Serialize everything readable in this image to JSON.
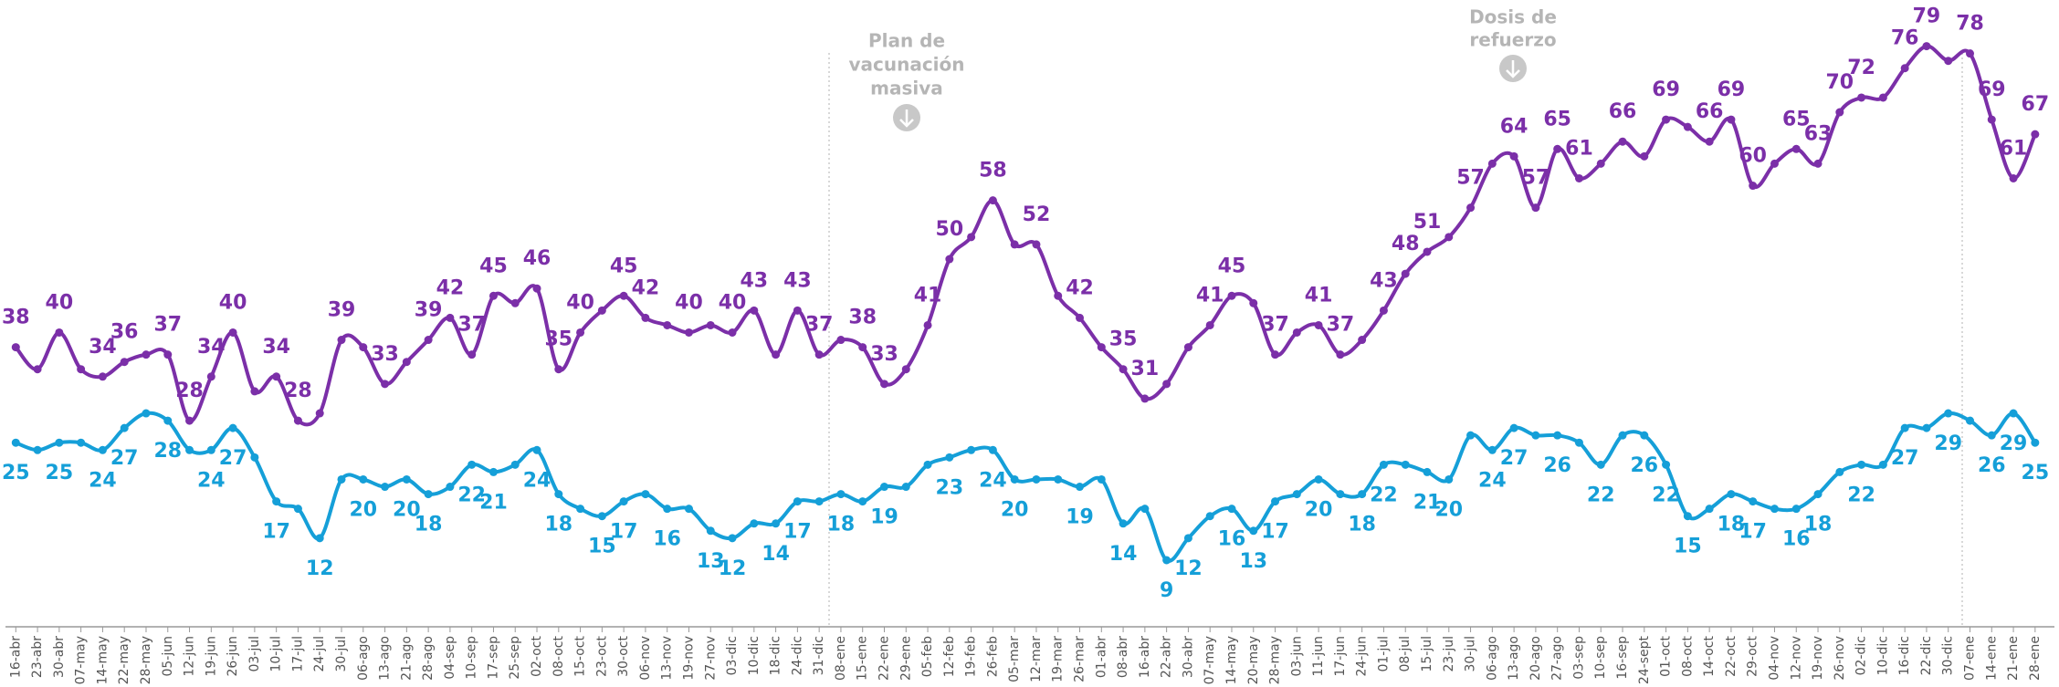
{
  "chart_data": {
    "type": "line",
    "categories": [
      "16-abr",
      "23-abr",
      "30-abr",
      "07-may",
      "14-may",
      "22-may",
      "28-may",
      "05-jun",
      "12-jun",
      "19-jun",
      "26-jun",
      "03-jul",
      "10-jul",
      "17-jul",
      "24-jul",
      "30-jul",
      "06-ago",
      "13-ago",
      "21-ago",
      "28-ago",
      "04-sep",
      "10-sep",
      "17-sep",
      "25-sep",
      "02-oct",
      "08-oct",
      "15-oct",
      "23-oct",
      "30-oct",
      "06-nov",
      "13-nov",
      "19-nov",
      "27-nov",
      "03-dic",
      "10-dic",
      "18-dic",
      "24-dic",
      "31-dic",
      "08-ene",
      "15-ene",
      "22-ene",
      "29-ene",
      "05-feb",
      "12-feb",
      "19-feb",
      "26-feb",
      "05-mar",
      "12-mar",
      "19-mar",
      "26-mar",
      "01-abr",
      "08-abr",
      "16-abr",
      "22-abr",
      "30-abr",
      "07-may",
      "14-may",
      "20-may",
      "28-may",
      "03-jun",
      "11-jun",
      "17-jun",
      "24-jun",
      "01-jul",
      "08-jul",
      "15-jul",
      "23-jul",
      "30-jul",
      "06-ago",
      "13-ago",
      "20-ago",
      "27-ago",
      "03-sep",
      "10-sep",
      "16-sep",
      "24-sept",
      "01-oct",
      "08-oct",
      "14-oct",
      "22-oct",
      "29-oct",
      "04-nov",
      "12-nov",
      "19-nov",
      "26-nov",
      "02-dic",
      "10-dic",
      "16-dic",
      "22-dic",
      "30-dic",
      "07-ene",
      "14-ene",
      "21-ene",
      "28-ene"
    ],
    "series": [
      {
        "color": "#7b2fa8",
        "label_position": "above",
        "values": [
          38,
          35,
          40,
          35,
          34,
          36,
          37,
          37,
          28,
          34,
          40,
          32,
          34,
          28,
          29,
          39,
          38,
          33,
          36,
          39,
          42,
          37,
          45,
          44,
          46,
          35,
          40,
          43,
          45,
          42,
          41,
          40,
          41,
          40,
          43,
          37,
          43,
          37,
          39,
          38,
          33,
          35,
          41,
          50,
          53,
          58,
          52,
          52,
          45,
          42,
          38,
          35,
          31,
          33,
          38,
          41,
          45,
          44,
          37,
          40,
          41,
          37,
          39,
          43,
          48,
          51,
          53,
          57,
          63,
          64,
          57,
          65,
          61,
          63,
          66,
          64,
          69,
          68,
          66,
          69,
          60,
          63,
          65,
          63,
          70,
          72,
          72,
          76,
          79,
          77,
          78,
          69,
          61,
          67
        ],
        "value_labels": [
          38,
          null,
          40,
          null,
          34,
          36,
          null,
          37,
          28,
          34,
          40,
          null,
          34,
          28,
          null,
          39,
          null,
          33,
          null,
          39,
          42,
          37,
          45,
          null,
          46,
          35,
          40,
          null,
          45,
          42,
          null,
          40,
          null,
          40,
          43,
          null,
          43,
          37,
          null,
          38,
          33,
          null,
          41,
          50,
          null,
          58,
          null,
          52,
          null,
          42,
          null,
          35,
          31,
          null,
          null,
          41,
          45,
          null,
          37,
          null,
          41,
          37,
          null,
          43,
          48,
          51,
          null,
          57,
          null,
          64,
          57,
          65,
          61,
          null,
          66,
          null,
          69,
          null,
          66,
          69,
          60,
          null,
          65,
          63,
          70,
          72,
          null,
          76,
          79,
          null,
          78,
          69,
          61,
          67
        ]
      },
      {
        "color": "#159fd8",
        "label_position": "below",
        "values": [
          25,
          24,
          25,
          25,
          24,
          27,
          29,
          28,
          24,
          24,
          27,
          23,
          17,
          16,
          12,
          20,
          20,
          19,
          20,
          18,
          19,
          22,
          21,
          22,
          24,
          18,
          16,
          15,
          17,
          18,
          16,
          16,
          13,
          12,
          14,
          14,
          17,
          17,
          18,
          17,
          19,
          19,
          22,
          23,
          24,
          24,
          20,
          20,
          20,
          19,
          20,
          14,
          16,
          9,
          12,
          15,
          16,
          13,
          17,
          18,
          20,
          18,
          18,
          22,
          22,
          21,
          20,
          26,
          24,
          27,
          26,
          26,
          25,
          22,
          26,
          26,
          22,
          15,
          16,
          18,
          17,
          16,
          16,
          18,
          21,
          22,
          22,
          27,
          27,
          29,
          28,
          26,
          29,
          25
        ],
        "value_labels": [
          25,
          null,
          25,
          null,
          24,
          27,
          null,
          28,
          null,
          24,
          27,
          null,
          17,
          null,
          12,
          null,
          20,
          null,
          20,
          18,
          null,
          22,
          21,
          null,
          24,
          18,
          null,
          15,
          17,
          null,
          16,
          null,
          13,
          12,
          null,
          14,
          17,
          null,
          18,
          null,
          19,
          null,
          null,
          23,
          null,
          24,
          20,
          null,
          null,
          19,
          null,
          14,
          null,
          9,
          12,
          null,
          16,
          13,
          17,
          null,
          20,
          null,
          18,
          22,
          null,
          21,
          20,
          null,
          24,
          27,
          null,
          26,
          null,
          22,
          null,
          26,
          22,
          15,
          null,
          18,
          17,
          null,
          16,
          18,
          null,
          22,
          null,
          27,
          null,
          29,
          null,
          26,
          29,
          25
        ]
      }
    ],
    "annotations": [
      {
        "lines": [
          "Plan de",
          "vacunación",
          "masiva"
        ]
      },
      {
        "lines": [
          "Dosis de",
          "refuerzo"
        ]
      }
    ]
  }
}
